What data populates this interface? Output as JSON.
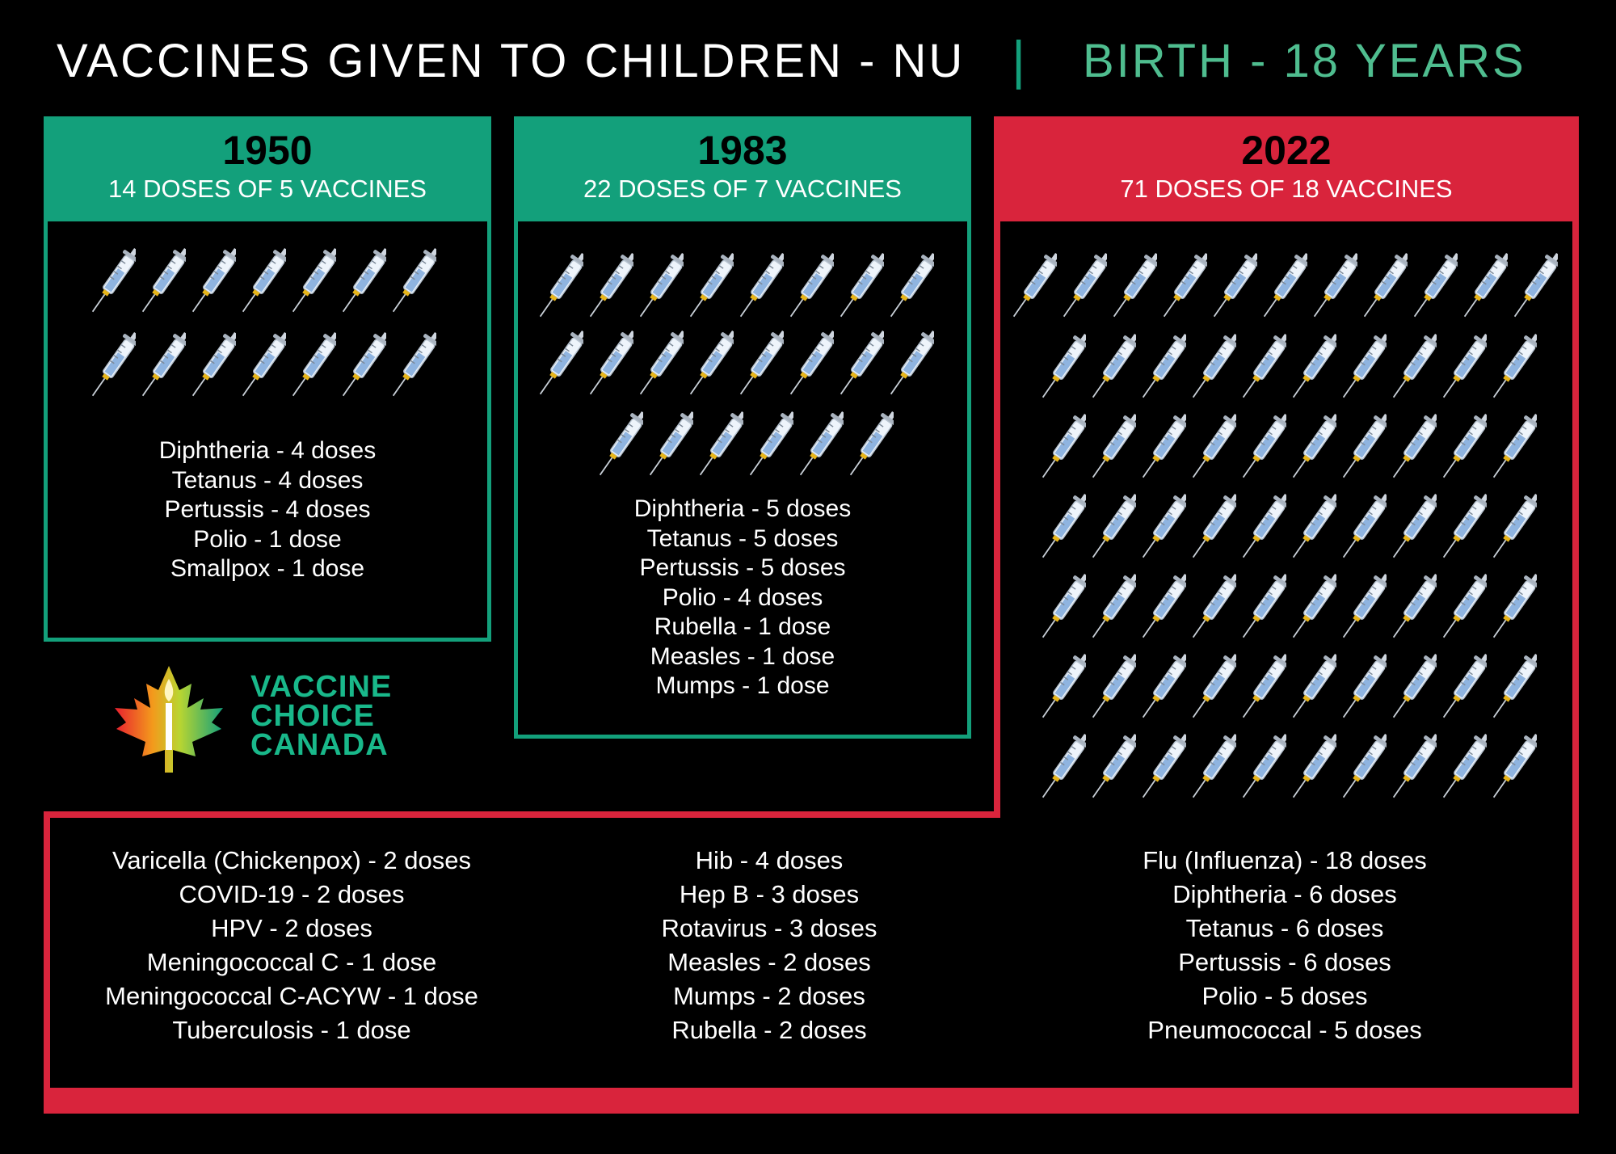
{
  "title": "VACCINES GIVEN TO CHILDREN - NU",
  "separator": "|",
  "subtitle": "BIRTH - 18 YEARS",
  "colors": {
    "green": "#13a07b",
    "red": "#d9243c",
    "background": "#000000"
  },
  "panels": [
    {
      "year": "1950",
      "summary": "14 DOSES OF 5 VACCINES",
      "syringe_count": 14,
      "doses": [
        "Diphtheria - 4 doses",
        "Tetanus - 4 doses",
        "Pertussis - 4 doses",
        "Polio - 1 dose",
        "Smallpox - 1 dose"
      ]
    },
    {
      "year": "1983",
      "summary": "22 DOSES OF 7 VACCINES",
      "syringe_count": 22,
      "doses": [
        "Diphtheria - 5 doses",
        "Tetanus - 5 doses",
        "Pertussis - 5 doses",
        "Polio - 4 doses",
        "Rubella - 1 dose",
        "Measles - 1 dose",
        "Mumps - 1 dose"
      ]
    },
    {
      "year": "2022",
      "summary": "71 DOSES OF 18 VACCINES",
      "syringe_count": 71,
      "dose_columns": [
        [
          "Varicella (Chickenpox) - 2 doses",
          "COVID-19 - 2 doses",
          "HPV - 2 doses",
          "Meningococcal C - 1 dose",
          "Meningococcal C-ACYW - 1 dose",
          "Tuberculosis - 1 dose"
        ],
        [
          "Hib - 4 doses",
          "Hep B - 3 doses",
          "Rotavirus - 3 doses",
          "Measles - 2 doses",
          "Mumps - 2 doses",
          "Rubella - 2 doses"
        ],
        [
          "Flu (Influenza) - 18 doses",
          "Diphtheria - 6 doses",
          "Tetanus - 6 doses",
          "Pertussis - 6 doses",
          "Polio - 5 doses",
          "Pneumococcal - 5 doses"
        ]
      ]
    }
  ],
  "logo": {
    "line1": "VACCINE",
    "line2": "CHOICE",
    "line3": "CANADA",
    "icon": "maple-leaf-candle-icon"
  },
  "icons": {
    "syringe": "syringe-icon"
  }
}
